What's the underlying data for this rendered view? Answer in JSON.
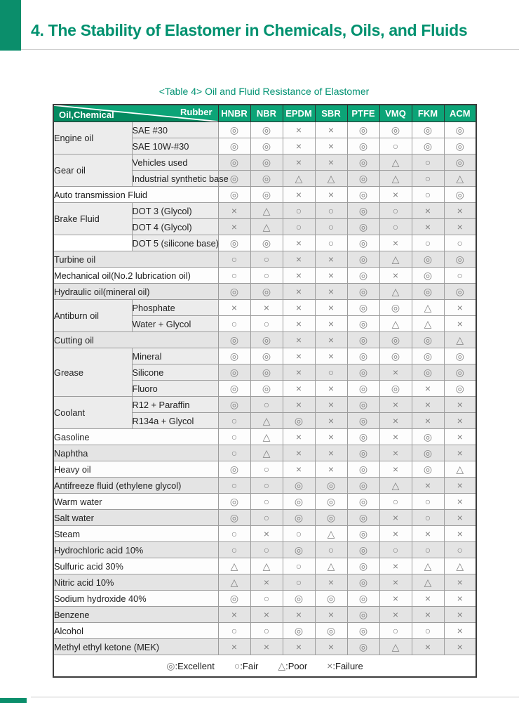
{
  "page": {
    "title": "4. The Stability of Elastomer in Chemicals, Oils, and Fluids",
    "caption": "<Table 4> Oil and Fluid Resistance of Elastomer"
  },
  "colors": {
    "accent_green": "#0b8e6b",
    "title_green": "#00916f",
    "header_green": "#0ca477",
    "header_green_dark": "#048a60",
    "band_gray": "#e4e4e4",
    "label_gray": "#ececec",
    "symbol_gray": "#828282"
  },
  "table": {
    "corner": {
      "oil_chemical": "Oil,Chemical",
      "rubber": "Rubber"
    },
    "columns": [
      "HNBR",
      "NBR",
      "EPDM",
      "SBR",
      "PTFE",
      "VMQ",
      "FKM",
      "ACM"
    ],
    "rows": [
      {
        "group": "Engine oil",
        "span": 2,
        "sub": "SAE #30",
        "band": "white",
        "values": [
          "◎",
          "◎",
          "×",
          "×",
          "◎",
          "◎",
          "◎",
          "◎"
        ]
      },
      {
        "sub": "SAE 10W-#30",
        "band": "white",
        "values": [
          "◎",
          "◎",
          "×",
          "×",
          "◎",
          "○",
          "◎",
          "◎"
        ]
      },
      {
        "group": "Gear oil",
        "span": 2,
        "sub": "Vehicles used",
        "band": "gray",
        "values": [
          "◎",
          "◎",
          "×",
          "×",
          "◎",
          "△",
          "○",
          "◎"
        ]
      },
      {
        "sub": "Industrial synthetic base",
        "band": "gray",
        "values": [
          "◎",
          "◎",
          "△",
          "△",
          "◎",
          "△",
          "○",
          "△"
        ]
      },
      {
        "full": "Auto transmission Fluid",
        "band": "white",
        "values": [
          "◎",
          "◎",
          "×",
          "×",
          "◎",
          "×",
          "○",
          "◎"
        ]
      },
      {
        "group": "Brake Fluid",
        "span": 2,
        "sub": "DOT 3 (Glycol)",
        "band": "gray",
        "values": [
          "×",
          "△",
          "○",
          "○",
          "◎",
          "○",
          "×",
          "×"
        ]
      },
      {
        "sub": "DOT 4 (Glycol)",
        "band": "gray",
        "values": [
          "×",
          "△",
          "○",
          "○",
          "◎",
          "○",
          "×",
          "×"
        ]
      },
      {
        "group": "",
        "span": 1,
        "sub": "DOT 5 (silicone base)",
        "band": "white",
        "values": [
          "◎",
          "◎",
          "×",
          "○",
          "◎",
          "×",
          "○",
          "○"
        ]
      },
      {
        "full": "Turbine oil",
        "band": "gray",
        "values": [
          "○",
          "○",
          "×",
          "×",
          "◎",
          "△",
          "◎",
          "◎"
        ]
      },
      {
        "full": "Mechanical oil(No.2 lubrication oil)",
        "band": "white",
        "values": [
          "○",
          "○",
          "×",
          "×",
          "◎",
          "×",
          "◎",
          "○"
        ]
      },
      {
        "full": "Hydraulic oil(mineral oil)",
        "band": "gray",
        "values": [
          "◎",
          "◎",
          "×",
          "×",
          "◎",
          "△",
          "◎",
          "◎"
        ]
      },
      {
        "group": "Antiburn oil",
        "span": 2,
        "sub": "Phosphate",
        "band": "white",
        "values": [
          "×",
          "×",
          "×",
          "×",
          "◎",
          "◎",
          "△",
          "×"
        ]
      },
      {
        "sub": "Water + Glycol",
        "band": "white",
        "values": [
          "○",
          "○",
          "×",
          "×",
          "◎",
          "△",
          "△",
          "×"
        ]
      },
      {
        "full": "Cutting oil",
        "band": "gray",
        "values": [
          "◎",
          "◎",
          "×",
          "×",
          "◎",
          "◎",
          "◎",
          "△"
        ]
      },
      {
        "group": "Grease",
        "span": 3,
        "sub": "Mineral",
        "band": "white",
        "values": [
          "◎",
          "◎",
          "×",
          "×",
          "◎",
          "◎",
          "◎",
          "◎"
        ]
      },
      {
        "sub": "Silicone",
        "band": "gray",
        "values": [
          "◎",
          "◎",
          "×",
          "○",
          "◎",
          "×",
          "◎",
          "◎"
        ]
      },
      {
        "sub": "Fluoro",
        "band": "white",
        "values": [
          "◎",
          "◎",
          "×",
          "×",
          "◎",
          "◎",
          "×",
          "◎"
        ]
      },
      {
        "group": "Coolant",
        "span": 2,
        "sub": "R12 + Paraffin",
        "band": "gray",
        "values": [
          "◎",
          "○",
          "×",
          "×",
          "◎",
          "×",
          "×",
          "×"
        ]
      },
      {
        "sub": "R134a + Glycol",
        "band": "gray",
        "values": [
          "○",
          "△",
          "◎",
          "×",
          "◎",
          "×",
          "×",
          "×"
        ]
      },
      {
        "full": "Gasoline",
        "band": "white",
        "values": [
          "○",
          "△",
          "×",
          "×",
          "◎",
          "×",
          "◎",
          "×"
        ]
      },
      {
        "full": "Naphtha",
        "band": "gray",
        "values": [
          "○",
          "△",
          "×",
          "×",
          "◎",
          "×",
          "◎",
          "×"
        ]
      },
      {
        "full": "Heavy oil",
        "band": "white",
        "values": [
          "◎",
          "○",
          "×",
          "×",
          "◎",
          "×",
          "◎",
          "△"
        ]
      },
      {
        "full": "Antifreeze fluid (ethylene glycol)",
        "band": "gray",
        "values": [
          "○",
          "○",
          "◎",
          "◎",
          "◎",
          "△",
          "×",
          "×"
        ]
      },
      {
        "full": "Warm water",
        "band": "white",
        "values": [
          "◎",
          "○",
          "◎",
          "◎",
          "◎",
          "○",
          "○",
          "×"
        ]
      },
      {
        "full": "Salt water",
        "band": "gray",
        "values": [
          "◎",
          "○",
          "◎",
          "◎",
          "◎",
          "×",
          "○",
          "×"
        ]
      },
      {
        "full": "Steam",
        "band": "white",
        "values": [
          "○",
          "×",
          "○",
          "△",
          "◎",
          "×",
          "×",
          "×"
        ]
      },
      {
        "full": "Hydrochloric acid 10%",
        "band": "gray",
        "values": [
          "○",
          "○",
          "◎",
          "○",
          "◎",
          "○",
          "○",
          "○"
        ]
      },
      {
        "full": "Sulfuric acid 30%",
        "band": "white",
        "values": [
          "△",
          "△",
          "○",
          "△",
          "◎",
          "×",
          "△",
          "△"
        ]
      },
      {
        "full": "Nitric acid 10%",
        "band": "gray",
        "values": [
          "△",
          "×",
          "○",
          "×",
          "◎",
          "×",
          "△",
          "×"
        ]
      },
      {
        "full": "Sodium hydroxide 40%",
        "band": "white",
        "values": [
          "◎",
          "○",
          "◎",
          "◎",
          "◎",
          "×",
          "×",
          "×"
        ]
      },
      {
        "full": "Benzene",
        "band": "gray",
        "values": [
          "×",
          "×",
          "×",
          "×",
          "◎",
          "×",
          "×",
          "×"
        ]
      },
      {
        "full": "Alcohol",
        "band": "white",
        "values": [
          "○",
          "○",
          "◎",
          "◎",
          "◎",
          "○",
          "○",
          "×"
        ]
      },
      {
        "full": "Methyl ethyl ketone (MEK)",
        "band": "gray",
        "values": [
          "×",
          "×",
          "×",
          "×",
          "◎",
          "△",
          "×",
          "×"
        ]
      }
    ]
  },
  "legend": {
    "items": [
      {
        "sym": "◎",
        "label": "Excellent"
      },
      {
        "sym": "○",
        "label": "Fair"
      },
      {
        "sym": "△",
        "label": "Poor"
      },
      {
        "sym": "×",
        "label": "Failure"
      }
    ]
  }
}
